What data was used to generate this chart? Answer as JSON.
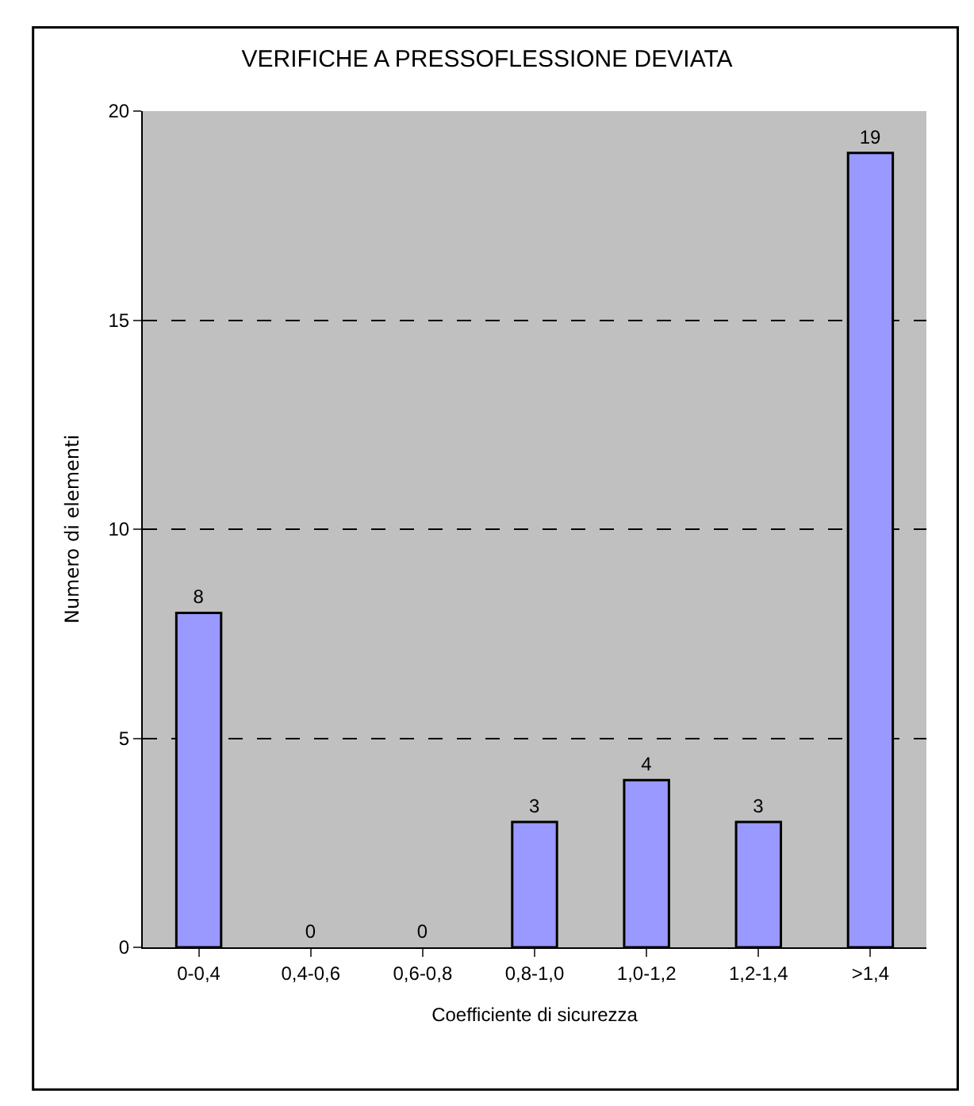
{
  "chart_data": {
    "type": "bar",
    "title": "VERIFICHE A PRESSOFLESSIONE DEVIATA",
    "xlabel": "Coefficiente di sicurezza",
    "ylabel": "Numero di elementi",
    "categories": [
      "0-0,4",
      "0,4-0,6",
      "0,6-0,8",
      "0,8-1,0",
      "1,0-1,2",
      "1,2-1,4",
      ">1,4"
    ],
    "values": [
      8,
      0,
      0,
      3,
      4,
      3,
      19
    ],
    "color": "#9999ff",
    "ylim": [
      0,
      20
    ],
    "yticks": [
      0,
      5,
      10,
      15,
      20
    ],
    "grid": "y",
    "data_labels": true
  }
}
